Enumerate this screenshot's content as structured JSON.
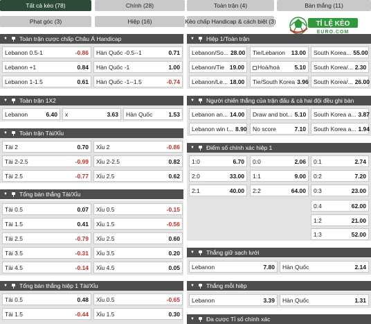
{
  "tabs": [
    {
      "label": "Tất cả kèo (78)",
      "active": true
    },
    {
      "label": "Chính (28)"
    },
    {
      "label": "Toàn trận (4)"
    },
    {
      "label": "Bàn thắng (11)"
    },
    {
      "label": "Phạt góc (3)"
    },
    {
      "label": "Hiệp (16)"
    },
    {
      "label": "Kèo chấp Handicap & cách biệt (3)"
    }
  ],
  "logo": {
    "top": "TỈ LỆ KÈO",
    "bottom": "EURO.COM",
    "color": "#2e9b3a"
  },
  "colors": {
    "accent": "#2b4a38",
    "header": "#4d4d4d",
    "negative": "#e0261b"
  },
  "sections": {
    "s1": {
      "title": "Toàn trận cược chấp Châu Á Handicap",
      "rows": [
        [
          {
            "n": "Lebanon 0.5-1",
            "v": "-0.86"
          },
          {
            "n": "Hàn Quốc -0.5--1",
            "v": "0.71"
          }
        ],
        [
          {
            "n": "Lebanon +1",
            "v": "0.84"
          },
          {
            "n": "Hàn Quốc -1",
            "v": "1.00"
          }
        ],
        [
          {
            "n": "Lebanon 1-1.5",
            "v": "0.61"
          },
          {
            "n": "Hàn Quốc -1--1.5",
            "v": "-0.74"
          }
        ]
      ]
    },
    "s2": {
      "title": "Toàn trận 1X2",
      "row": [
        {
          "n": "Lebanon",
          "v": "6.40"
        },
        {
          "n": "x",
          "v": "3.63"
        },
        {
          "n": "Hàn Quốc",
          "v": "1.53"
        }
      ]
    },
    "s3": {
      "title": "Toàn trận Tài/Xỉu",
      "rows": [
        [
          {
            "n": "Tài 2",
            "v": "0.70"
          },
          {
            "n": "Xỉu 2",
            "v": "-0.86"
          }
        ],
        [
          {
            "n": "Tài 2-2.5",
            "v": "-0.99"
          },
          {
            "n": "Xỉu 2-2.5",
            "v": "0.82"
          }
        ],
        [
          {
            "n": "Tài 2.5",
            "v": "-0.77"
          },
          {
            "n": "Xỉu 2.5",
            "v": "0.62"
          }
        ]
      ]
    },
    "s4": {
      "title": "Tổng bàn thắng Tài/Xỉu",
      "rows": [
        [
          {
            "n": "Tài 0.5",
            "v": "0.07"
          },
          {
            "n": "Xỉu 0.5",
            "v": "-0.15"
          }
        ],
        [
          {
            "n": "Tài 1.5",
            "v": "0.41"
          },
          {
            "n": "Xỉu 1.5",
            "v": "-0.56"
          }
        ],
        [
          {
            "n": "Tài 2.5",
            "v": "-0.79"
          },
          {
            "n": "Xỉu 2.5",
            "v": "0.60"
          }
        ],
        [
          {
            "n": "Tài 3.5",
            "v": "-0.31"
          },
          {
            "n": "Xỉu 3.5",
            "v": "0.20"
          }
        ],
        [
          {
            "n": "Tài 4.5",
            "v": "-0.14"
          },
          {
            "n": "Xỉu 4.5",
            "v": "0.05"
          }
        ]
      ]
    },
    "s5": {
      "title": "Tổng bàn thắng hiệp 1 Tài/Xỉu",
      "rows": [
        [
          {
            "n": "Tài 0.5",
            "v": "0.48"
          },
          {
            "n": "Xỉu 0.5",
            "v": "-0.65"
          }
        ],
        [
          {
            "n": "Tài 1.5",
            "v": "-0.44"
          },
          {
            "n": "Xỉu 1.5",
            "v": "0.30"
          }
        ]
      ]
    },
    "r1": {
      "title": "Hiệp 1/Toàn trận",
      "rows": [
        [
          {
            "n": "Lebanon/So...",
            "v": "28.00"
          },
          {
            "n": "Tie/Lebanon",
            "v": "13.00"
          },
          {
            "n": "South Korea...",
            "v": "55.00"
          }
        ],
        [
          {
            "n": "Lebanon/Tie",
            "v": "19.00"
          },
          {
            "n": "Hoà/hoà",
            "v": "5.10",
            "cb": true
          },
          {
            "n": "South Korea/...",
            "v": "2.30"
          }
        ],
        [
          {
            "n": "Lebanon/Le...",
            "v": "18.00"
          },
          {
            "n": "Tie/South Korea",
            "v": "3.96"
          },
          {
            "n": "South Korea/...",
            "v": "26.00"
          }
        ]
      ]
    },
    "r2": {
      "title": "Người chiến thắng của trận đấu & cả hai đội đều ghi bàn",
      "rows": [
        [
          {
            "n": "Lebanon an...",
            "v": "14.00"
          },
          {
            "n": "Draw and bot...",
            "v": "5.10"
          },
          {
            "n": "South Korea a...",
            "v": "3.87"
          }
        ],
        [
          {
            "n": "Lebanon win t...",
            "v": "8.90"
          },
          {
            "n": "No score",
            "v": "7.10"
          },
          {
            "n": "South Korea a...",
            "v": "1.94"
          }
        ]
      ]
    },
    "r3": {
      "title": "Điểm số chính xác hiệp 1",
      "rows": [
        [
          {
            "n": "1:0",
            "v": "6.70"
          },
          {
            "n": "0:0",
            "v": "2.06"
          },
          {
            "n": "0:1",
            "v": "2.74"
          }
        ],
        [
          {
            "n": "2:0",
            "v": "33.00"
          },
          {
            "n": "1:1",
            "v": "9.00"
          },
          {
            "n": "0:2",
            "v": "7.20"
          }
        ],
        [
          {
            "n": "2:1",
            "v": "40.00"
          },
          {
            "n": "2:2",
            "v": "64.00"
          },
          {
            "n": "0:3",
            "v": "23.00"
          }
        ],
        [
          {
            "n": "0:4",
            "v": "62.00"
          }
        ],
        [
          {
            "n": "1:2",
            "v": "21.00"
          }
        ],
        [
          {
            "n": "1:3",
            "v": "52.00"
          }
        ]
      ]
    },
    "r4": {
      "title": "Thắng giữ sạch lưới",
      "row": [
        {
          "n": "Lebanon",
          "v": "7.80"
        },
        {
          "n": "Hàn Quốc",
          "v": "2.14"
        }
      ]
    },
    "r5": {
      "title": "Thắng mỗi hiệp",
      "row": [
        {
          "n": "Lebanon",
          "v": "3.39"
        },
        {
          "n": "Hàn Quốc",
          "v": "1.31"
        }
      ]
    },
    "r6": {
      "title": "Đa cược Tỉ số chính xác"
    }
  }
}
